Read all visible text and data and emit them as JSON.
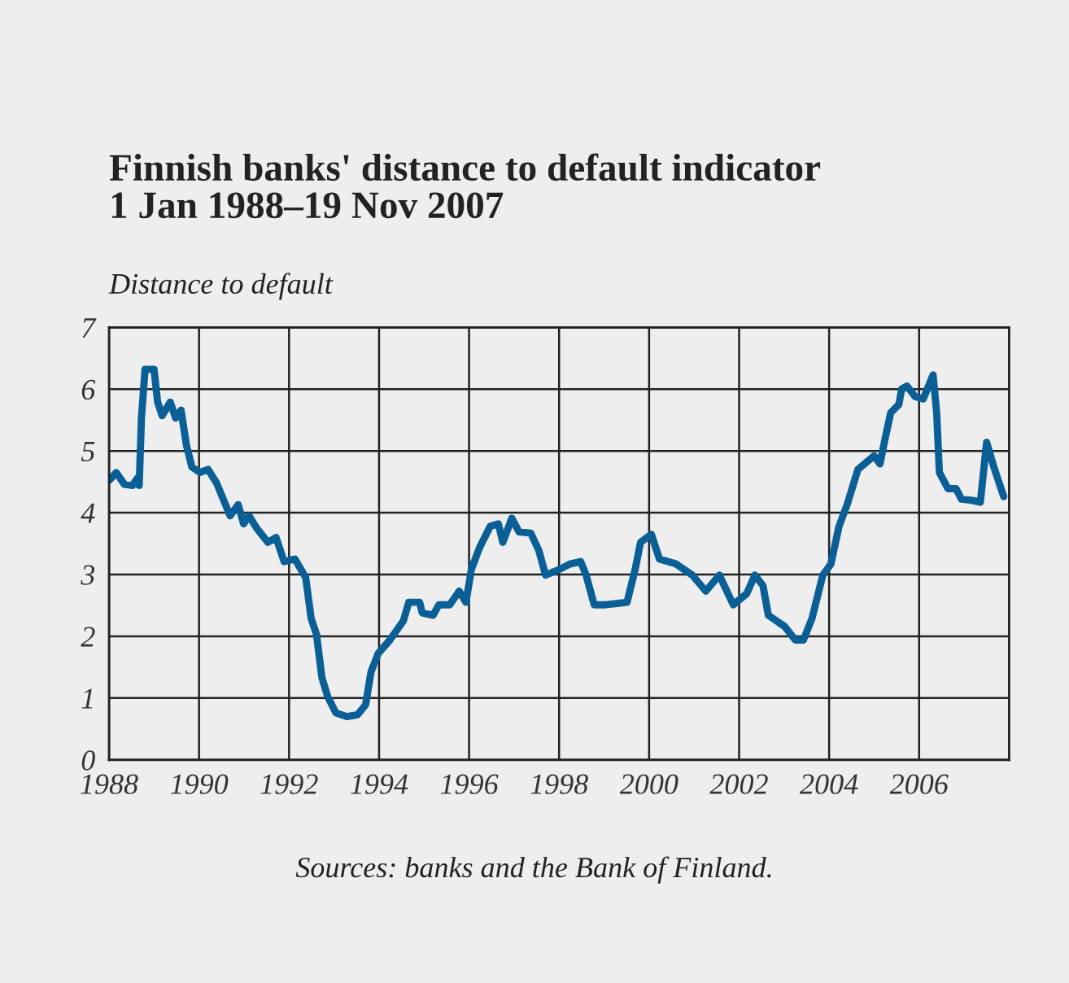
{
  "chart_data": {
    "type": "line",
    "title": "Finnish banks' distance to default indicator\n1 Jan 1988–19 Nov 2007",
    "ylabel": "Distance to default",
    "annotations": [
      "Sources: banks and the Bank of Finland."
    ],
    "x": [
      1988.0,
      1988.16,
      1988.34,
      1988.52,
      1988.64,
      1988.67,
      1988.72,
      1988.8,
      1989.0,
      1989.08,
      1989.18,
      1989.36,
      1989.48,
      1989.6,
      1989.72,
      1989.84,
      1990.02,
      1990.2,
      1990.39,
      1990.69,
      1990.87,
      1990.99,
      1991.11,
      1991.29,
      1991.53,
      1991.71,
      1991.89,
      1992.13,
      1992.37,
      1992.49,
      1992.61,
      1992.73,
      1992.86,
      1993.04,
      1993.28,
      1993.52,
      1993.7,
      1993.82,
      1993.98,
      1994.24,
      1994.54,
      1994.66,
      1994.9,
      1994.96,
      1995.2,
      1995.33,
      1995.57,
      1995.78,
      1995.93,
      1996.05,
      1996.23,
      1996.47,
      1996.65,
      1996.75,
      1996.95,
      1997.11,
      1997.37,
      1997.55,
      1997.7,
      1998.0,
      1998.24,
      1998.48,
      1998.6,
      1998.78,
      1999.03,
      1999.51,
      1999.69,
      1999.81,
      2000.05,
      2000.23,
      2000.6,
      2000.96,
      2001.26,
      2001.56,
      2001.87,
      2002.17,
      2002.35,
      2002.53,
      2002.65,
      2003.01,
      2003.25,
      2003.43,
      2003.62,
      2003.86,
      2004.04,
      2004.22,
      2004.4,
      2004.64,
      2005.0,
      2005.13,
      2005.25,
      2005.37,
      2005.55,
      2005.61,
      2005.73,
      2005.91,
      2006.09,
      2006.31,
      2006.39,
      2006.45,
      2006.64,
      2006.82,
      2006.94,
      2007.18,
      2007.36,
      2007.5,
      2007.66,
      2007.88
    ],
    "series": [
      {
        "color": "#0a5f96",
        "values": [
          4.52,
          4.65,
          4.46,
          4.44,
          4.57,
          4.44,
          5.53,
          6.32,
          6.32,
          5.79,
          5.57,
          5.79,
          5.53,
          5.66,
          5.09,
          4.74,
          4.65,
          4.7,
          4.48,
          3.95,
          4.13,
          3.82,
          3.95,
          3.74,
          3.52,
          3.6,
          3.21,
          3.25,
          2.95,
          2.29,
          2.03,
          1.33,
          1.02,
          0.76,
          0.7,
          0.73,
          0.89,
          1.42,
          1.72,
          1.94,
          2.25,
          2.55,
          2.55,
          2.38,
          2.34,
          2.51,
          2.51,
          2.73,
          2.55,
          3.08,
          3.43,
          3.78,
          3.82,
          3.52,
          3.91,
          3.69,
          3.67,
          3.39,
          2.99,
          3.08,
          3.17,
          3.21,
          2.99,
          2.51,
          2.51,
          2.55,
          3.08,
          3.52,
          3.65,
          3.25,
          3.17,
          2.99,
          2.73,
          2.99,
          2.51,
          2.69,
          2.99,
          2.82,
          2.34,
          2.16,
          1.94,
          1.94,
          2.29,
          2.99,
          3.17,
          3.78,
          4.13,
          4.7,
          4.92,
          4.79,
          5.22,
          5.62,
          5.75,
          6.0,
          6.05,
          5.88,
          5.84,
          6.23,
          5.62,
          4.65,
          4.39,
          4.39,
          4.22,
          4.2,
          4.17,
          5.14,
          4.74,
          4.26
        ]
      }
    ],
    "xlim": [
      1988,
      2008
    ],
    "xticks": [
      1988,
      1990,
      1992,
      1994,
      1996,
      1998,
      2000,
      2002,
      2004,
      2006
    ],
    "ylim": [
      0,
      7
    ],
    "yticks": [
      0,
      1,
      2,
      3,
      4,
      5,
      6,
      7
    ],
    "grid": true,
    "marker": "none",
    "line_style": "solid"
  }
}
